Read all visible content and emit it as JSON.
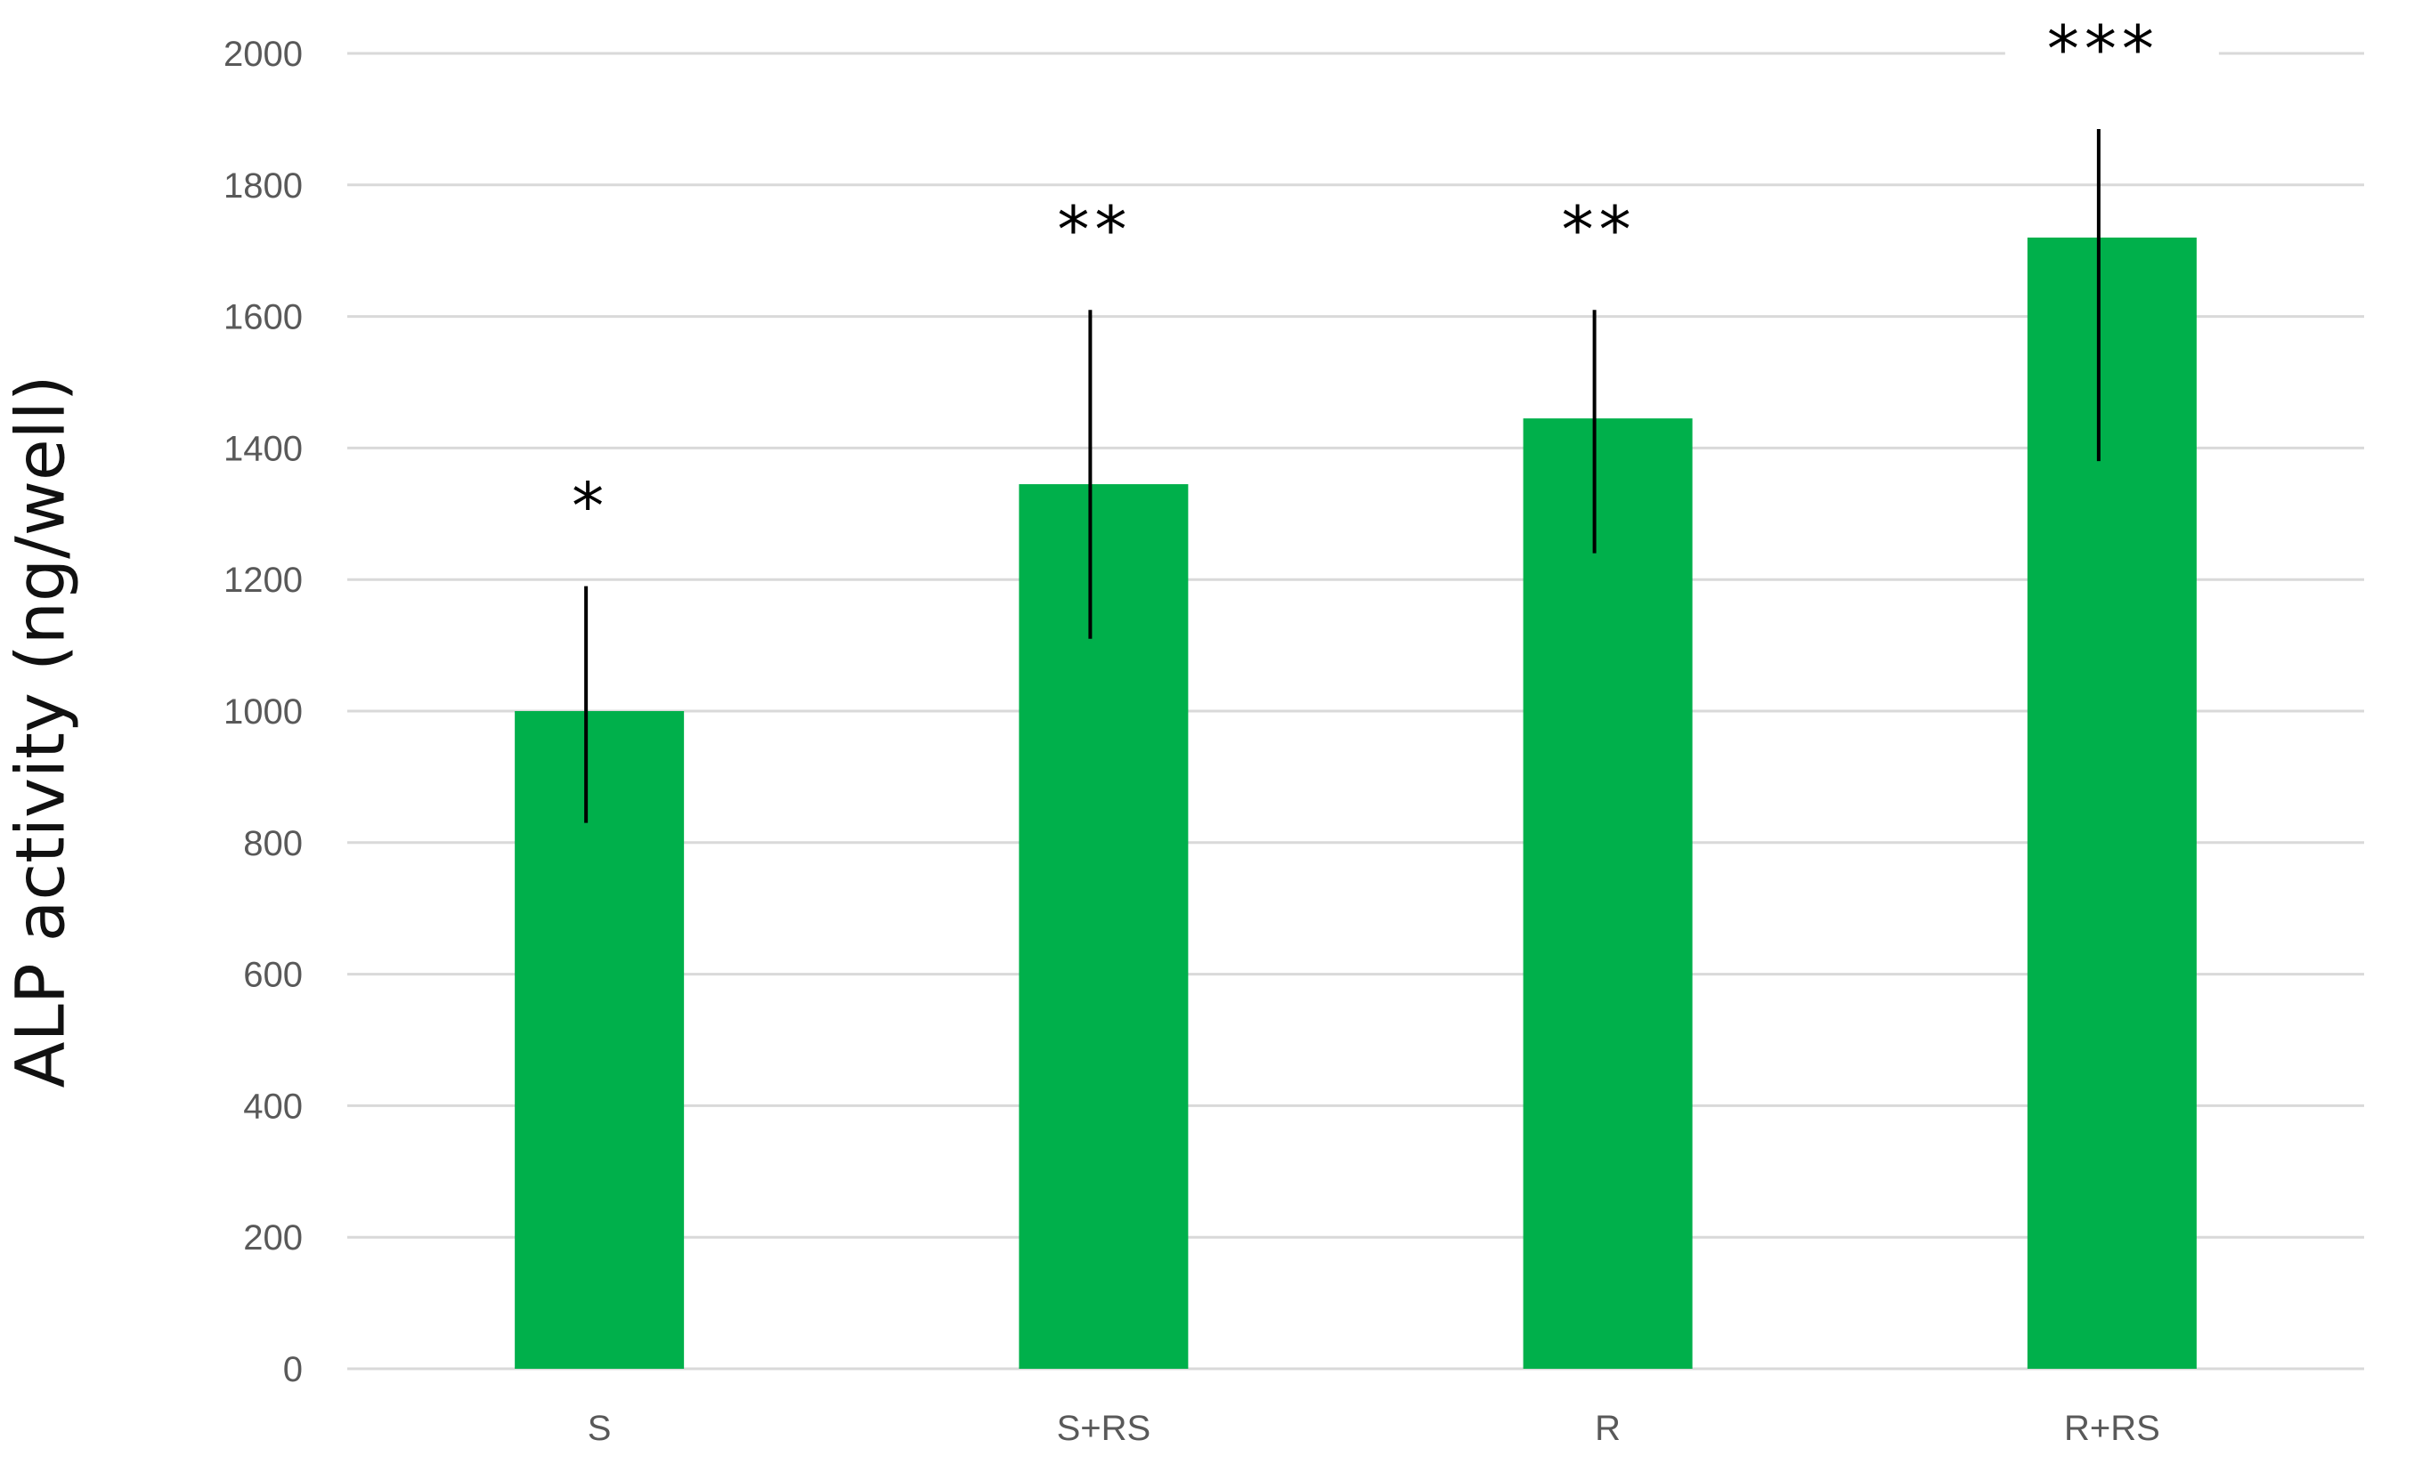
{
  "chart_data": {
    "type": "bar",
    "title": "",
    "xlabel": "",
    "ylabel": "ALP activity (ng/well)",
    "categories": [
      "S",
      "S+RS",
      "R",
      "R+RS"
    ],
    "values": [
      1000,
      1345,
      1445,
      1720
    ],
    "error_upper": [
      1190,
      1610,
      1610,
      1885
    ],
    "error_lower": [
      830,
      1110,
      1240,
      1380
    ],
    "annotations": [
      "*",
      "**",
      "**",
      "***"
    ],
    "ylim": [
      0,
      2000
    ],
    "yticks": [
      "0",
      "200",
      "400",
      "600",
      "800",
      "1000",
      "1200",
      "1400",
      "1600",
      "1800",
      "2000"
    ],
    "grid": true,
    "legend": "none",
    "colors": {
      "bar": "#00B04B",
      "grid": "#d9d9d9",
      "error": "#000000",
      "tick_text": "#595959"
    }
  }
}
